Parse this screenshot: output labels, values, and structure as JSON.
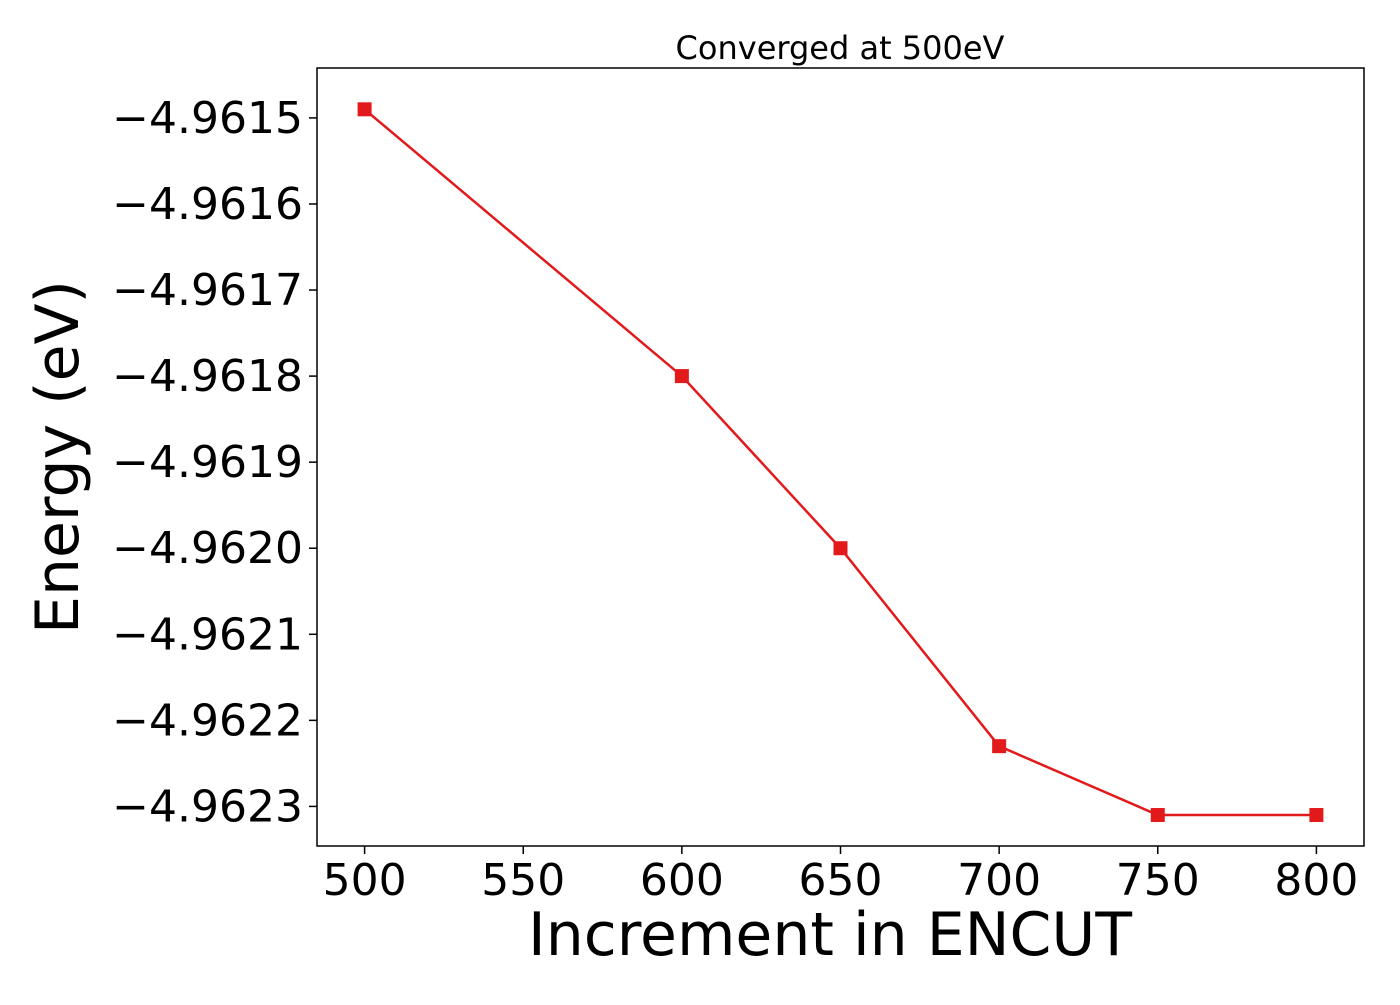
{
  "chart_data": {
    "type": "line",
    "title": "Converged at 500eV",
    "xlabel": "Increment in ENCUT",
    "ylabel": "Energy (eV)",
    "x": [
      500,
      600,
      650,
      700,
      750,
      800
    ],
    "series": [
      {
        "values": [
          -4.96149,
          -4.9618,
          -4.962,
          -4.96223,
          -4.96231,
          -4.96231
        ],
        "color": "#e31a1c",
        "marker": "square"
      }
    ],
    "xlim": [
      485,
      815
    ],
    "ylim": [
      -4.962346,
      -4.961442
    ],
    "xticks": [
      500,
      550,
      600,
      650,
      700,
      750,
      800
    ],
    "xtick_labels": [
      "500",
      "550",
      "600",
      "650",
      "700",
      "750",
      "800"
    ],
    "yticks": [
      -4.9615,
      -4.9616,
      -4.9617,
      -4.9618,
      -4.9619,
      -4.962,
      -4.9621,
      -4.9622,
      -4.9623
    ],
    "ytick_labels": [
      "−4.9615",
      "−4.9616",
      "−4.9617",
      "−4.9618",
      "−4.9619",
      "−4.9620",
      "−4.9621",
      "−4.9622",
      "−4.9623"
    ],
    "grid": false,
    "legend": "none"
  }
}
